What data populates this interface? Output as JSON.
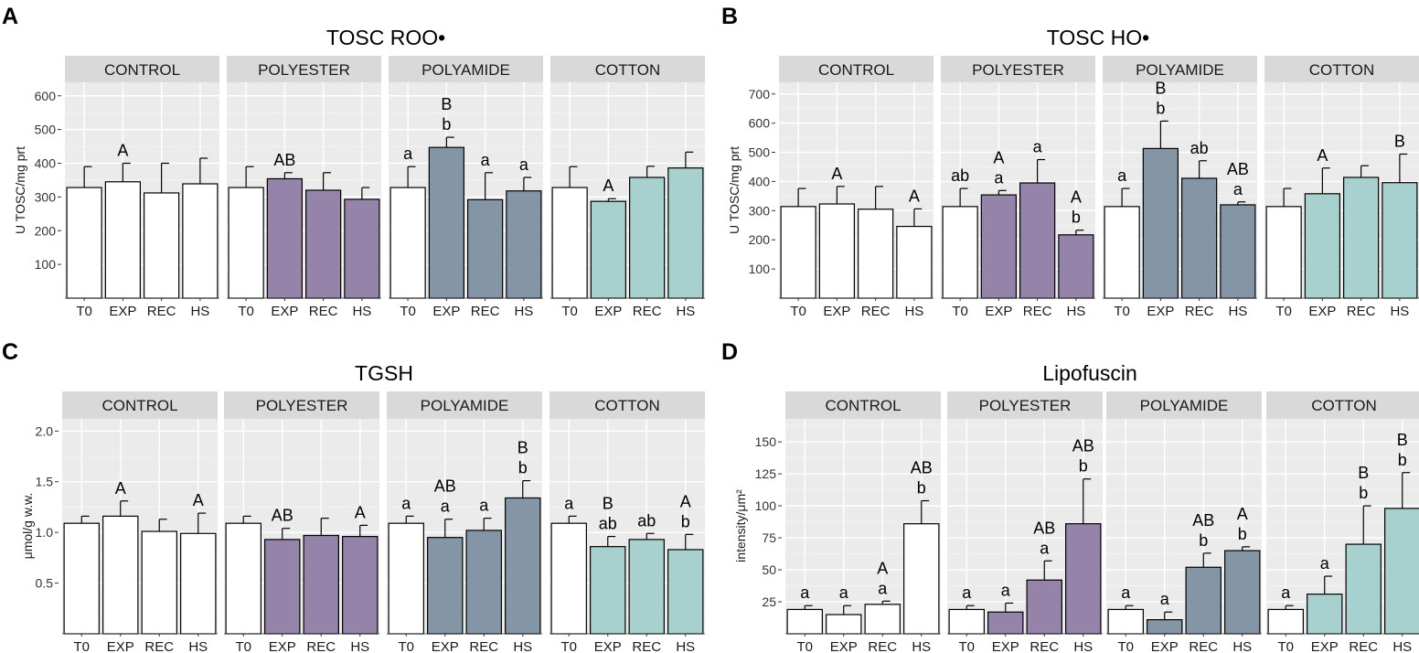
{
  "chart_data": [
    {
      "type": "bar",
      "panel_label": "A",
      "title": "TOSC ROO•",
      "ylabel": "U TOSC/mg prt",
      "ylim": [
        0,
        640
      ],
      "yticks": [
        100,
        200,
        300,
        400,
        500,
        600
      ],
      "categories": [
        "T0",
        "EXP",
        "REC",
        "HS"
      ],
      "facets": [
        {
          "name": "CONTROL",
          "fill": "#ffffff",
          "values": [
            328,
            345,
            312,
            339
          ],
          "errors": [
            62,
            55,
            88,
            76
          ],
          "labels": [
            [],
            [
              "A"
            ],
            [],
            []
          ]
        },
        {
          "name": "POLYESTER",
          "fill": "#9583a9",
          "values": [
            328,
            354,
            320,
            293
          ],
          "errors": [
            62,
            18,
            52,
            35
          ],
          "labels": [
            [],
            [
              "AB"
            ],
            [],
            []
          ]
        },
        {
          "name": "POLYAMIDE",
          "fill": "#8495a6",
          "values": [
            328,
            447,
            292,
            318
          ],
          "errors": [
            62,
            30,
            80,
            40
          ],
          "labels": [
            [
              "a"
            ],
            [
              "B",
              "b"
            ],
            [
              "a"
            ],
            [
              "a"
            ]
          ]
        },
        {
          "name": "COTTON",
          "fill": "#a7d0ce",
          "values": [
            328,
            287,
            358,
            386
          ],
          "errors": [
            62,
            8,
            33,
            47
          ],
          "labels": [
            [],
            [
              "A"
            ],
            [],
            []
          ]
        }
      ]
    },
    {
      "type": "bar",
      "panel_label": "B",
      "title": "TOSC HO•",
      "ylabel": "U TOSC/mg prt",
      "ylim": [
        0,
        740
      ],
      "yticks": [
        100,
        200,
        300,
        400,
        500,
        600,
        700
      ],
      "categories": [
        "T0",
        "EXP",
        "REC",
        "HS"
      ],
      "facets": [
        {
          "name": "CONTROL",
          "fill": "#ffffff",
          "values": [
            314,
            323,
            305,
            246
          ],
          "errors": [
            62,
            60,
            78,
            60
          ],
          "labels": [
            [],
            [
              "A"
            ],
            [],
            [
              "A"
            ]
          ]
        },
        {
          "name": "POLYESTER",
          "fill": "#9583a9",
          "values": [
            314,
            354,
            395,
            217
          ],
          "errors": [
            62,
            15,
            80,
            16
          ],
          "labels": [
            [
              "ab"
            ],
            [
              "A",
              "a"
            ],
            [
              "a"
            ],
            [
              "A",
              "b"
            ]
          ]
        },
        {
          "name": "POLYAMIDE",
          "fill": "#8495a6",
          "values": [
            314,
            513,
            411,
            320
          ],
          "errors": [
            62,
            94,
            60,
            10
          ],
          "labels": [
            [
              "a"
            ],
            [
              "B",
              "b"
            ],
            [
              "ab"
            ],
            [
              "AB",
              "a"
            ]
          ]
        },
        {
          "name": "COTTON",
          "fill": "#a7d0ce",
          "values": [
            314,
            358,
            414,
            396
          ],
          "errors": [
            62,
            88,
            40,
            98
          ],
          "labels": [
            [],
            [
              "A"
            ],
            [],
            [
              "B"
            ]
          ]
        }
      ]
    },
    {
      "type": "bar",
      "panel_label": "C",
      "title": "TGSH",
      "ylabel": "μmol/g w.w.",
      "ylim": [
        0,
        2.12
      ],
      "yticks": [
        0.5,
        1.0,
        1.5,
        2.0
      ],
      "ytick_labels": [
        "0.5",
        "1.0",
        "1.5",
        "2.0"
      ],
      "categories": [
        "T0",
        "EXP",
        "REC",
        "HS"
      ],
      "facets": [
        {
          "name": "CONTROL",
          "fill": "#ffffff",
          "values": [
            1.09,
            1.16,
            1.01,
            0.99
          ],
          "errors": [
            0.07,
            0.15,
            0.12,
            0.2
          ],
          "labels": [
            [],
            [
              "A"
            ],
            [],
            [
              "A"
            ]
          ]
        },
        {
          "name": "POLYESTER",
          "fill": "#9583a9",
          "values": [
            1.09,
            0.93,
            0.97,
            0.96
          ],
          "errors": [
            0.07,
            0.11,
            0.17,
            0.11
          ],
          "labels": [
            [],
            [
              "AB"
            ],
            [],
            [
              "A"
            ]
          ]
        },
        {
          "name": "POLYAMIDE",
          "fill": "#8495a6",
          "values": [
            1.09,
            0.95,
            1.02,
            1.34
          ],
          "errors": [
            0.07,
            0.18,
            0.12,
            0.17
          ],
          "labels": [
            [
              "a"
            ],
            [
              "AB",
              "a"
            ],
            [
              "a"
            ],
            [
              "B",
              "b"
            ]
          ]
        },
        {
          "name": "COTTON",
          "fill": "#a7d0ce",
          "values": [
            1.09,
            0.86,
            0.93,
            0.83
          ],
          "errors": [
            0.07,
            0.1,
            0.06,
            0.15
          ],
          "labels": [
            [
              "a"
            ],
            [
              "B",
              "ab"
            ],
            [
              "ab"
            ],
            [
              "A",
              "b"
            ]
          ]
        }
      ]
    },
    {
      "type": "bar",
      "panel_label": "D",
      "title": "Lipofuscin",
      "ylabel": "intensity/μm²",
      "ylim": [
        0,
        168
      ],
      "yticks": [
        25,
        50,
        75,
        100,
        125,
        150
      ],
      "categories": [
        "T0",
        "EXP",
        "REC",
        "HS"
      ],
      "facets": [
        {
          "name": "CONTROL",
          "fill": "#ffffff",
          "values": [
            19,
            15,
            23,
            86
          ],
          "errors": [
            3,
            7,
            2.5,
            18
          ],
          "labels": [
            [
              "a"
            ],
            [
              "a"
            ],
            [
              "A",
              "a"
            ],
            [
              "AB",
              "b"
            ]
          ]
        },
        {
          "name": "POLYESTER",
          "fill": "#9583a9",
          "values": [
            19,
            17,
            42,
            86
          ],
          "errors": [
            3,
            7,
            15,
            35
          ],
          "labels": [
            [
              "a"
            ],
            [
              "a"
            ],
            [
              "AB",
              "a"
            ],
            [
              "AB",
              "b"
            ]
          ]
        },
        {
          "name": "POLYAMIDE",
          "fill": "#8495a6",
          "values": [
            19,
            11,
            52,
            65
          ],
          "errors": [
            3,
            6,
            11,
            3
          ],
          "labels": [
            [
              "a"
            ],
            [
              "a"
            ],
            [
              "AB",
              "b"
            ],
            [
              "A",
              "b"
            ]
          ]
        },
        {
          "name": "COTTON",
          "fill": "#a7d0ce",
          "values": [
            19,
            31,
            70,
            98
          ],
          "errors": [
            3,
            14,
            30,
            28
          ],
          "labels": [
            [
              "a"
            ],
            [
              "a"
            ],
            [
              "B",
              "b"
            ],
            [
              "B",
              "b"
            ]
          ]
        }
      ]
    }
  ]
}
